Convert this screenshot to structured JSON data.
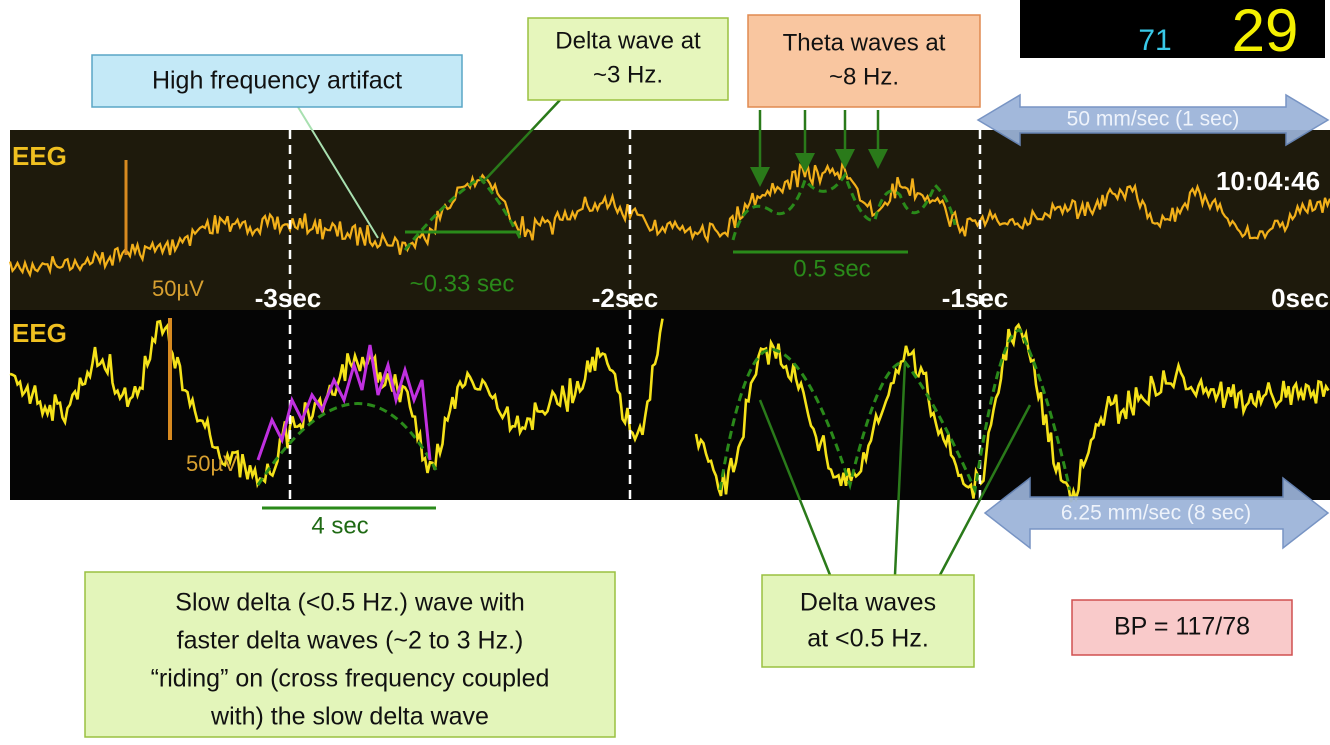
{
  "monitor": {
    "value_left": "71",
    "value_right": "29",
    "time": "10:04:46"
  },
  "traces": [
    {
      "label": "EEG",
      "scale": "50µV"
    },
    {
      "label": "EEG",
      "scale": "50µV"
    }
  ],
  "time_marks": [
    "-3sec",
    "-2sec",
    "-1sec",
    "0sec"
  ],
  "speeds": {
    "top": "50 mm/sec (1 sec)",
    "bottom": "6.25 mm/sec (8 sec)"
  },
  "durations": {
    "delta": "~0.33 sec",
    "theta": "0.5 sec",
    "slow": "4 sec"
  },
  "callouts": {
    "artifact": "High frequency artifact",
    "delta": {
      "lines": [
        "Delta wave at",
        "~3 Hz."
      ]
    },
    "theta": {
      "lines": [
        "Theta waves at",
        "~8 Hz."
      ]
    },
    "slow_delta": {
      "lines": [
        "Slow delta (<0.5 Hz.) wave with",
        "faster delta waves (~2 to 3 Hz.)",
        "“riding” on (cross frequency coupled",
        "with) the slow delta wave"
      ]
    },
    "delta_waves": {
      "lines": [
        "Delta waves",
        "at <0.5 Hz."
      ]
    },
    "bp": "BP = 117/78"
  }
}
